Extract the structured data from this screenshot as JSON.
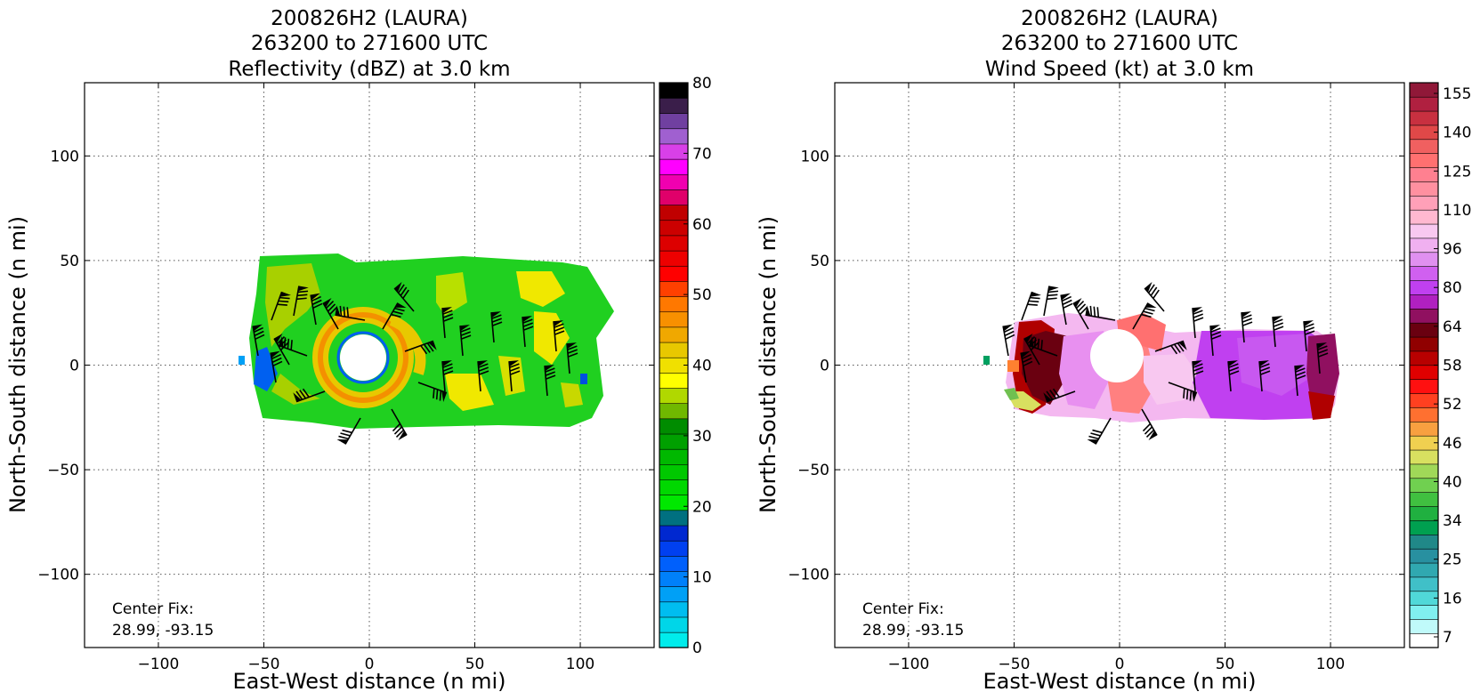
{
  "chart_data": [
    {
      "type": "heatmap",
      "title_lines": [
        "200826H2 (LAURA)",
        "263200 to 271600 UTC",
        "Reflectivity (dBZ) at 3.0 km"
      ],
      "xlabel": "East-West distance (n mi)",
      "ylabel": "North-South distance (n mi)",
      "xlim": [
        -135,
        135
      ],
      "ylim": [
        -135,
        135
      ],
      "xticks": [
        -100,
        -50,
        0,
        50,
        100
      ],
      "yticks": [
        -100,
        -50,
        0,
        50,
        100
      ],
      "xtick_labels": [
        "−100",
        "−50",
        "0",
        "50",
        "100"
      ],
      "ytick_labels": [
        "−100",
        "−50",
        "0",
        "50",
        "100"
      ],
      "grid": true,
      "annotation_lines": [
        "Center Fix:",
        "28.99, -93.15"
      ],
      "colorbar": {
        "min": 0,
        "max": 80,
        "tick_values": [
          0,
          10,
          20,
          30,
          40,
          50,
          60,
          70,
          80
        ],
        "tick_labels": [
          "0",
          "10",
          "20",
          "30",
          "40",
          "50",
          "60",
          "70",
          "80"
        ],
        "colors": [
          "#00ecec",
          "#00d6e8",
          "#00bdf0",
          "#00a0f6",
          "#0080fa",
          "#0060fc",
          "#0040f0",
          "#0028d0",
          "#007080",
          "#00e800",
          "#00d800",
          "#00c800",
          "#00b800",
          "#00a000",
          "#008c00",
          "#70b800",
          "#b0d800",
          "#ffff00",
          "#f0e000",
          "#e8c800",
          "#f0a800",
          "#f89000",
          "#ff7800",
          "#ff4000",
          "#ff0000",
          "#ee0000",
          "#dd0000",
          "#cc0000",
          "#c00000",
          "#e0006a",
          "#f000b0",
          "#ff00ff",
          "#d840e8",
          "#a060d0",
          "#7040a0",
          "#3a1e4a",
          "#000000"
        ]
      }
    },
    {
      "type": "heatmap",
      "title_lines": [
        "200826H2 (LAURA)",
        "263200 to 271600 UTC",
        "Wind Speed (kt) at 3.0 km"
      ],
      "xlabel": "East-West distance (n mi)",
      "ylabel": "North-South distance (n mi)",
      "xlim": [
        -135,
        135
      ],
      "ylim": [
        -135,
        135
      ],
      "xticks": [
        -100,
        -50,
        0,
        50,
        100
      ],
      "yticks": [
        -100,
        -50,
        0,
        50,
        100
      ],
      "xtick_labels": [
        "−100",
        "−50",
        "0",
        "50",
        "100"
      ],
      "ytick_labels": [
        "−100",
        "−50",
        "0",
        "50",
        "100"
      ],
      "grid": true,
      "annotation_lines": [
        "Center Fix:",
        "28.99, -93.15"
      ],
      "colorbar": {
        "tick_labels": [
          "7",
          "16",
          "25",
          "34",
          "40",
          "46",
          "52",
          "58",
          "64",
          "80",
          "96",
          "110",
          "125",
          "140",
          "155"
        ],
        "colors": [
          "#ffffff",
          "#c0fafa",
          "#80f0f0",
          "#50d8d8",
          "#40c0c8",
          "#30a8b0",
          "#2890a0",
          "#208888",
          "#00a050",
          "#20b040",
          "#40c040",
          "#70d050",
          "#a0d858",
          "#d8e060",
          "#f0d050",
          "#f8a040",
          "#ff7030",
          "#ff4020",
          "#ff1010",
          "#e00000",
          "#b80000",
          "#900000",
          "#6a0010",
          "#901060",
          "#b020c0",
          "#c040f0",
          "#d060f0",
          "#e090f0",
          "#f0b0f0",
          "#f8c8f0",
          "#ffb8d0",
          "#ffa0b8",
          "#ff90a0",
          "#ff8090",
          "#ff7070",
          "#f06060",
          "#e04848",
          "#c83040",
          "#b02040",
          "#901838"
        ]
      }
    }
  ]
}
